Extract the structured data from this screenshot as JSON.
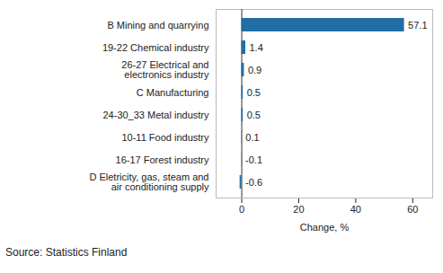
{
  "chart_data": {
    "type": "bar",
    "orientation": "horizontal",
    "categories": [
      "B Mining and quarrying",
      "19-22 Chemical industry",
      "26-27 Electrical and electronics industry",
      "C Manufacturing",
      "24-30_33 Metal industry",
      "10-11 Food industry",
      "16-17 Forest industry",
      "D Eletricity, gas, steam and air conditioning supply"
    ],
    "values": [
      57.1,
      1.4,
      0.9,
      0.5,
      0.5,
      0.1,
      -0.1,
      -0.6
    ],
    "color": "#206ea4",
    "xlabel": "Change, %",
    "caption": "Source: Statistics Finland",
    "xlim": [
      -9,
      67
    ],
    "xticks": [
      0,
      20,
      40,
      60
    ],
    "grid": false,
    "data_labels": true
  }
}
